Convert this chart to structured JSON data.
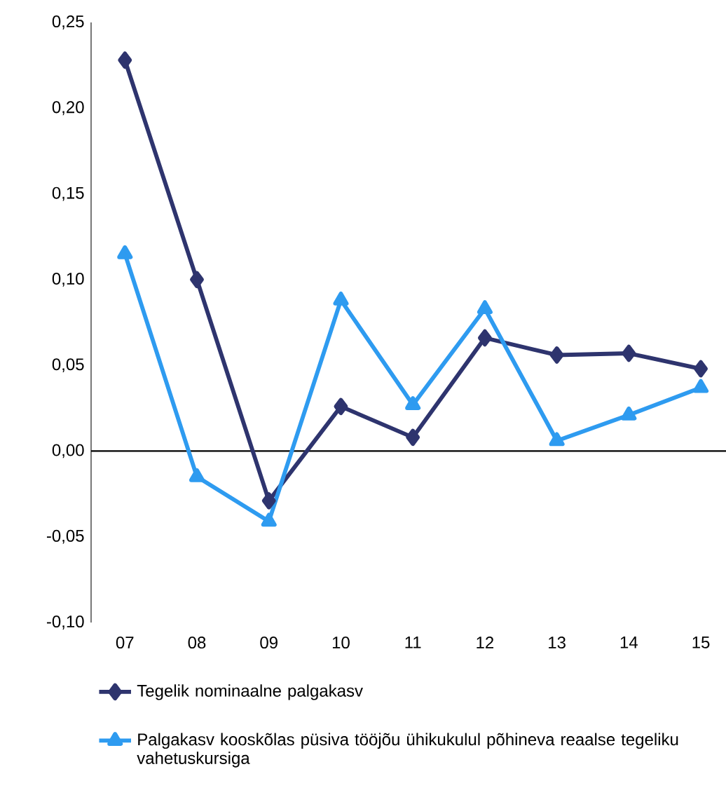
{
  "chart_data": {
    "type": "line",
    "categories": [
      "07",
      "08",
      "09",
      "10",
      "11",
      "12",
      "13",
      "14",
      "15"
    ],
    "series": [
      {
        "name": "Tegelik nominaalne palgakasv",
        "color": "#2e346e",
        "marker": "diamond",
        "values": [
          0.228,
          0.1,
          -0.029,
          0.026,
          0.008,
          0.066,
          0.056,
          0.057,
          0.048
        ]
      },
      {
        "name": "Palgakasv kooskõlas püsiva tööjõu ühikukulul põhineva reaalse tegeliku vahetuskursiga",
        "color": "#2e9bf0",
        "marker": "triangle",
        "values": [
          0.115,
          -0.015,
          -0.041,
          0.088,
          0.027,
          0.083,
          0.006,
          0.021,
          0.037
        ]
      }
    ],
    "ylim": [
      -0.1,
      0.25
    ],
    "yticks": [
      {
        "value": -0.1,
        "label": "-0,10"
      },
      {
        "value": -0.05,
        "label": "-0,05"
      },
      {
        "value": 0,
        "label": "0,00"
      },
      {
        "value": 0.05,
        "label": "0,05"
      },
      {
        "value": 0.1,
        "label": "0,10"
      },
      {
        "value": 0.15,
        "label": "0,15"
      },
      {
        "value": 0.2,
        "label": "0,20"
      },
      {
        "value": 0.25,
        "label": "0,25"
      }
    ],
    "legend": "bottom"
  }
}
